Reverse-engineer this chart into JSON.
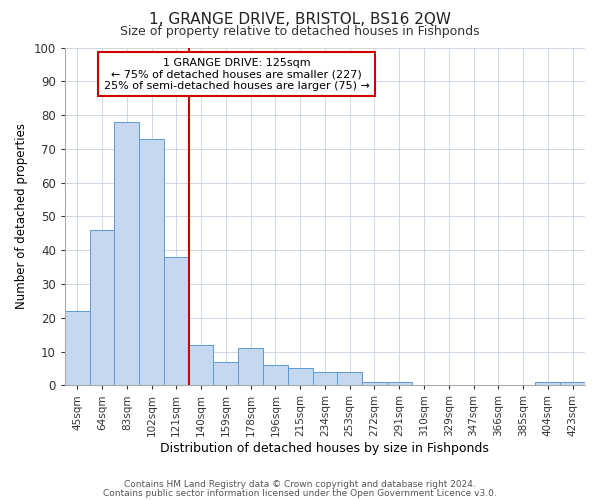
{
  "title": "1, GRANGE DRIVE, BRISTOL, BS16 2QW",
  "subtitle": "Size of property relative to detached houses in Fishponds",
  "xlabel": "Distribution of detached houses by size in Fishponds",
  "ylabel": "Number of detached properties",
  "bar_values": [
    22,
    46,
    78,
    73,
    38,
    12,
    7,
    11,
    6,
    5,
    4,
    4,
    1,
    1,
    0,
    0,
    0,
    0,
    0,
    1,
    1
  ],
  "bin_labels": [
    "45sqm",
    "64sqm",
    "83sqm",
    "102sqm",
    "121sqm",
    "140sqm",
    "159sqm",
    "178sqm",
    "196sqm",
    "215sqm",
    "234sqm",
    "253sqm",
    "272sqm",
    "291sqm",
    "310sqm",
    "329sqm",
    "347sqm",
    "366sqm",
    "385sqm",
    "404sqm",
    "423sqm"
  ],
  "bar_color": "#c5d8f0",
  "bar_edge_color": "#5b9bd5",
  "ylim": [
    0,
    100
  ],
  "yticks": [
    0,
    10,
    20,
    30,
    40,
    50,
    60,
    70,
    80,
    90,
    100
  ],
  "red_line_bin": 4,
  "annotation_title": "1 GRANGE DRIVE: 125sqm",
  "annotation_line1": "← 75% of detached houses are smaller (227)",
  "annotation_line2": "25% of semi-detached houses are larger (75) →",
  "annotation_box_color": "#ffffff",
  "annotation_box_edge": "#cc0000",
  "red_line_color": "#cc0000",
  "grid_color": "#c8d0e0",
  "background_color": "#ffffff",
  "title_fontsize": 11,
  "subtitle_fontsize": 9,
  "footer1": "Contains HM Land Registry data © Crown copyright and database right 2024.",
  "footer2": "Contains public sector information licensed under the Open Government Licence v3.0."
}
